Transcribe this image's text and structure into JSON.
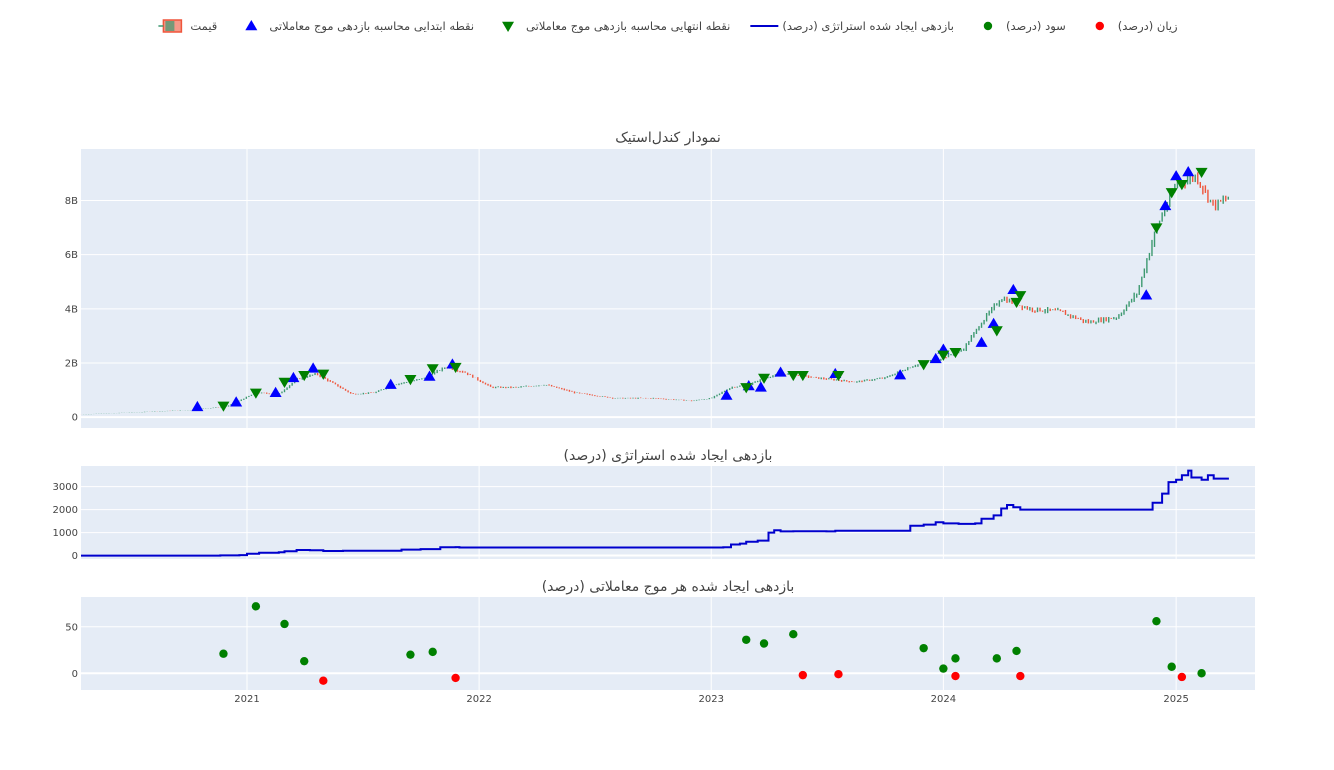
{
  "legend": {
    "items": [
      {
        "key": "price",
        "label": "قیمت",
        "symbol": "candle",
        "color": "#3d9970",
        "color2": "#ef553b"
      },
      {
        "key": "start",
        "label": "نقطه ابتدایی محاسبه بازدهی موج معاملاتی",
        "symbol": "triangle-up",
        "color": "#0000ff"
      },
      {
        "key": "end",
        "label": "نقطه انتهایی محاسبه بازدهی موج معاملاتی",
        "symbol": "triangle-down",
        "color": "#008000"
      },
      {
        "key": "strategy",
        "label": "بازدهی ایجاد شده استراتژی (درصد)",
        "symbol": "line",
        "color": "#0000cd"
      },
      {
        "key": "profit",
        "label": "سود (درصد)",
        "symbol": "circle",
        "color": "#008000"
      },
      {
        "key": "loss",
        "label": "زیان (درصد)",
        "symbol": "circle",
        "color": "#ff0000"
      }
    ]
  },
  "colors": {
    "plot_bg": "#e5ecf6",
    "grid": "#ffffff",
    "increasing": "#3d9970",
    "decreasing": "#ef553b",
    "strategy_line": "#0000cd",
    "start_marker": "#0000ff",
    "end_marker": "#008000",
    "profit": "#008000",
    "loss": "#ff0000"
  },
  "x_axis": {
    "range": [
      "2020-04-15",
      "2025-05-05"
    ],
    "ticks": [
      {
        "date": "2021-01-01",
        "label": "2021"
      },
      {
        "date": "2022-01-01",
        "label": "2022"
      },
      {
        "date": "2023-01-01",
        "label": "2023"
      },
      {
        "date": "2024-01-01",
        "label": "2024"
      },
      {
        "date": "2025-01-01",
        "label": "2025"
      }
    ]
  },
  "chart_data": [
    {
      "type": "candlestick",
      "title": "نمودار کندل‌استیک",
      "ylim": [
        -400000000,
        9900000000
      ],
      "yticks": [
        {
          "value": 0,
          "label": "0"
        },
        {
          "value": 2000000000,
          "label": "2B"
        },
        {
          "value": 4000000000,
          "label": "4B"
        },
        {
          "value": 6000000000,
          "label": "6B"
        },
        {
          "value": 8000000000,
          "label": "8B"
        }
      ],
      "price_path": [
        [
          "2020-04-15",
          100000000
        ],
        [
          "2020-07-01",
          170000000
        ],
        [
          "2020-10-01",
          260000000
        ],
        [
          "2020-12-01",
          400000000
        ],
        [
          "2021-01-15",
          900000000
        ],
        [
          "2021-02-20",
          850000000
        ],
        [
          "2021-03-20",
          1400000000
        ],
        [
          "2021-04-20",
          1600000000
        ],
        [
          "2021-05-20",
          1200000000
        ],
        [
          "2021-06-15",
          850000000
        ],
        [
          "2021-07-20",
          900000000
        ],
        [
          "2021-08-20",
          1200000000
        ],
        [
          "2021-10-01",
          1400000000
        ],
        [
          "2021-11-10",
          1850000000
        ],
        [
          "2021-12-10",
          1650000000
        ],
        [
          "2022-01-20",
          1100000000
        ],
        [
          "2022-03-01",
          1100000000
        ],
        [
          "2022-04-15",
          1200000000
        ],
        [
          "2022-06-01",
          900000000
        ],
        [
          "2022-08-01",
          700000000
        ],
        [
          "2022-10-01",
          700000000
        ],
        [
          "2022-12-01",
          600000000
        ],
        [
          "2023-01-01",
          700000000
        ],
        [
          "2023-02-01",
          1100000000
        ],
        [
          "2023-03-01",
          1200000000
        ],
        [
          "2023-04-01",
          1500000000
        ],
        [
          "2023-05-01",
          1600000000
        ],
        [
          "2023-06-15",
          1450000000
        ],
        [
          "2023-08-15",
          1300000000
        ],
        [
          "2023-10-01",
          1450000000
        ],
        [
          "2023-11-15",
          1900000000
        ],
        [
          "2024-01-01",
          2200000000
        ],
        [
          "2024-02-01",
          2500000000
        ],
        [
          "2024-03-01",
          3500000000
        ],
        [
          "2024-04-01",
          4400000000
        ],
        [
          "2024-05-15",
          4000000000
        ],
        [
          "2024-07-01",
          3900000000
        ],
        [
          "2024-08-15",
          3500000000
        ],
        [
          "2024-10-01",
          3700000000
        ],
        [
          "2024-11-01",
          4600000000
        ],
        [
          "2024-12-01",
          7000000000
        ],
        [
          "2025-01-01",
          8600000000
        ],
        [
          "2025-02-01",
          8900000000
        ],
        [
          "2025-03-01",
          7800000000
        ],
        [
          "2025-03-25",
          8100000000
        ]
      ],
      "markers_start": [
        [
          "2020-10-15",
          380000000
        ],
        [
          "2020-12-15",
          550000000
        ],
        [
          "2021-02-15",
          900000000
        ],
        [
          "2021-03-15",
          1450000000
        ],
        [
          "2021-04-15",
          1800000000
        ],
        [
          "2021-08-15",
          1200000000
        ],
        [
          "2021-10-15",
          1500000000
        ],
        [
          "2021-11-20",
          1950000000
        ],
        [
          "2023-01-25",
          800000000
        ],
        [
          "2023-03-01",
          1150000000
        ],
        [
          "2023-03-20",
          1100000000
        ],
        [
          "2023-04-20",
          1650000000
        ],
        [
          "2023-07-15",
          1600000000
        ],
        [
          "2023-10-25",
          1550000000
        ],
        [
          "2023-12-20",
          2150000000
        ],
        [
          "2024-01-01",
          2500000000
        ],
        [
          "2024-03-01",
          2750000000
        ],
        [
          "2024-03-20",
          3450000000
        ],
        [
          "2024-04-20",
          4700000000
        ],
        [
          "2024-11-15",
          4500000000
        ],
        [
          "2024-12-15",
          7800000000
        ],
        [
          "2025-01-01",
          8900000000
        ],
        [
          "2025-01-20",
          9050000000
        ]
      ],
      "markers_end": [
        [
          "2020-11-25",
          420000000
        ],
        [
          "2021-01-15",
          900000000
        ],
        [
          "2021-03-01",
          1300000000
        ],
        [
          "2021-04-01",
          1550000000
        ],
        [
          "2021-05-01",
          1600000000
        ],
        [
          "2021-09-15",
          1400000000
        ],
        [
          "2021-10-20",
          1800000000
        ],
        [
          "2021-11-25",
          1850000000
        ],
        [
          "2023-02-25",
          1100000000
        ],
        [
          "2023-03-25",
          1450000000
        ],
        [
          "2023-05-10",
          1550000000
        ],
        [
          "2023-05-25",
          1550000000
        ],
        [
          "2023-07-20",
          1550000000
        ],
        [
          "2023-12-01",
          1950000000
        ],
        [
          "2024-01-01",
          2300000000
        ],
        [
          "2024-01-20",
          2400000000
        ],
        [
          "2024-03-25",
          3200000000
        ],
        [
          "2024-04-25",
          4250000000
        ],
        [
          "2024-05-01",
          4500000000
        ],
        [
          "2024-12-01",
          7000000000
        ],
        [
          "2024-12-25",
          8300000000
        ],
        [
          "2025-01-10",
          8600000000
        ],
        [
          "2025-02-10",
          9050000000
        ]
      ]
    },
    {
      "type": "line",
      "title": "بازدهی ایجاد شده استراتژی (درصد)",
      "series_name": "بازدهی ایجاد شده استراتژی (درصد)",
      "ylim": [
        -150,
        3900
      ],
      "yticks": [
        {
          "value": 0,
          "label": "0"
        },
        {
          "value": 1000,
          "label": "1000"
        },
        {
          "value": 2000,
          "label": "2000"
        },
        {
          "value": 3000,
          "label": "3000"
        }
      ],
      "points": [
        [
          "2020-04-15",
          0
        ],
        [
          "2020-11-20",
          5
        ],
        [
          "2020-12-20",
          20
        ],
        [
          "2021-01-01",
          80
        ],
        [
          "2021-01-20",
          120
        ],
        [
          "2021-02-20",
          140
        ],
        [
          "2021-03-01",
          190
        ],
        [
          "2021-03-20",
          240
        ],
        [
          "2021-04-10",
          230
        ],
        [
          "2021-05-01",
          200
        ],
        [
          "2021-06-01",
          210
        ],
        [
          "2021-09-01",
          260
        ],
        [
          "2021-10-01",
          280
        ],
        [
          "2021-11-01",
          360
        ],
        [
          "2021-11-25",
          370
        ],
        [
          "2021-12-01",
          350
        ],
        [
          "2022-12-31",
          350
        ],
        [
          "2023-01-20",
          360
        ],
        [
          "2023-02-01",
          480
        ],
        [
          "2023-02-15",
          520
        ],
        [
          "2023-02-25",
          600
        ],
        [
          "2023-03-15",
          650
        ],
        [
          "2023-04-01",
          1000
        ],
        [
          "2023-04-10",
          1100
        ],
        [
          "2023-04-20",
          1050
        ],
        [
          "2023-05-10",
          1060
        ],
        [
          "2023-07-01",
          1050
        ],
        [
          "2023-07-15",
          1080
        ],
        [
          "2023-10-25",
          1080
        ],
        [
          "2023-11-10",
          1300
        ],
        [
          "2023-12-01",
          1350
        ],
        [
          "2023-12-20",
          1450
        ],
        [
          "2024-01-01",
          1400
        ],
        [
          "2024-01-25",
          1380
        ],
        [
          "2024-02-20",
          1400
        ],
        [
          "2024-03-01",
          1600
        ],
        [
          "2024-03-20",
          1750
        ],
        [
          "2024-04-01",
          2050
        ],
        [
          "2024-04-10",
          2200
        ],
        [
          "2024-04-20",
          2100
        ],
        [
          "2024-05-01",
          2000
        ],
        [
          "2024-11-01",
          2000
        ],
        [
          "2024-11-25",
          2300
        ],
        [
          "2024-12-10",
          2700
        ],
        [
          "2024-12-20",
          3200
        ],
        [
          "2025-01-01",
          3300
        ],
        [
          "2025-01-10",
          3500
        ],
        [
          "2025-01-20",
          3700
        ],
        [
          "2025-01-25",
          3400
        ],
        [
          "2025-02-10",
          3300
        ],
        [
          "2025-02-20",
          3500
        ],
        [
          "2025-03-01",
          3350
        ],
        [
          "2025-03-25",
          3350
        ]
      ]
    },
    {
      "type": "scatter",
      "title": "بازدهی ایجاد شده هر موج معاملاتی (درصد)",
      "ylim": [
        -18,
        82
      ],
      "yticks": [
        {
          "value": 0,
          "label": "0"
        },
        {
          "value": 50,
          "label": "50"
        }
      ],
      "series": [
        {
          "key": "profit",
          "name": "سود (درصد)",
          "points": [
            [
              "2020-11-25",
              21
            ],
            [
              "2021-01-15",
              72
            ],
            [
              "2021-03-01",
              53
            ],
            [
              "2021-04-01",
              13
            ],
            [
              "2021-09-15",
              20
            ],
            [
              "2021-10-20",
              23
            ],
            [
              "2023-02-25",
              36
            ],
            [
              "2023-03-25",
              32
            ],
            [
              "2023-05-10",
              42
            ],
            [
              "2023-12-01",
              27
            ],
            [
              "2024-01-01",
              5
            ],
            [
              "2024-01-20",
              16
            ],
            [
              "2024-03-25",
              16
            ],
            [
              "2024-04-25",
              24
            ],
            [
              "2024-12-01",
              56
            ],
            [
              "2024-12-25",
              7
            ],
            [
              "2025-02-10",
              0
            ]
          ]
        },
        {
          "key": "loss",
          "name": "زیان (درصد)",
          "points": [
            [
              "2021-05-01",
              -8
            ],
            [
              "2021-11-25",
              -5
            ],
            [
              "2023-05-25",
              -2
            ],
            [
              "2023-07-20",
              -1
            ],
            [
              "2024-01-20",
              -3
            ],
            [
              "2024-05-01",
              -3
            ],
            [
              "2025-01-10",
              -4
            ]
          ]
        }
      ]
    }
  ]
}
